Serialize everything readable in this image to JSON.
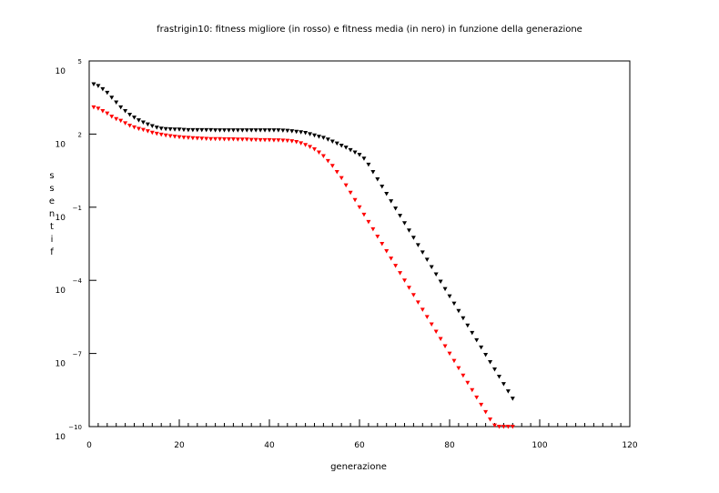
{
  "chart_data": {
    "type": "scatter",
    "title": "frastrigin10: fitness migliore (in rosso) e fitness media (in nero) in funzione della generazione",
    "xlabel": "generazione",
    "ylabel": "fitness",
    "ylabel_display": [
      "s",
      "s",
      "e",
      "n",
      "t",
      "i",
      "f"
    ],
    "xlim": [
      0,
      120
    ],
    "ylim": [
      1e-10,
      100000
    ],
    "yscale": "log",
    "grid": false,
    "x_ticks": [
      {
        "value": 0,
        "label": "0"
      },
      {
        "value": 20,
        "label": "20"
      },
      {
        "value": 40,
        "label": "40"
      },
      {
        "value": 60,
        "label": "60"
      },
      {
        "value": 80,
        "label": "80"
      },
      {
        "value": 100,
        "label": "100"
      },
      {
        "value": 120,
        "label": "120"
      }
    ],
    "y_ticks": [
      {
        "exp": 5,
        "base": "10",
        "label": "5"
      },
      {
        "exp": 2,
        "base": "10",
        "label": "2"
      },
      {
        "exp": -1,
        "base": "10",
        "label": "−1"
      },
      {
        "exp": -4,
        "base": "10",
        "label": "−4"
      },
      {
        "exp": -7,
        "base": "10",
        "label": "−7"
      },
      {
        "exp": -10,
        "base": "10",
        "label": "−10"
      }
    ],
    "series": [
      {
        "name": "fitness media",
        "color": "#000000",
        "values_log10": [
          4.05,
          3.98,
          3.85,
          3.7,
          3.5,
          3.3,
          3.1,
          2.95,
          2.8,
          2.68,
          2.57,
          2.48,
          2.4,
          2.33,
          2.27,
          2.23,
          2.21,
          2.2,
          2.19,
          2.19,
          2.18,
          2.17,
          2.17,
          2.17,
          2.17,
          2.17,
          2.17,
          2.16,
          2.16,
          2.16,
          2.16,
          2.16,
          2.16,
          2.16,
          2.16,
          2.16,
          2.16,
          2.16,
          2.16,
          2.16,
          2.16,
          2.16,
          2.15,
          2.14,
          2.12,
          2.1,
          2.08,
          2.05,
          2.0,
          1.95,
          1.9,
          1.85,
          1.78,
          1.7,
          1.62,
          1.53,
          1.45,
          1.35,
          1.25,
          1.15,
          1.0,
          0.75,
          0.45,
          0.15,
          -0.15,
          -0.45,
          -0.75,
          -1.05,
          -1.35,
          -1.65,
          -1.95,
          -2.25,
          -2.55,
          -2.85,
          -3.15,
          -3.45,
          -3.75,
          -4.05,
          -4.35,
          -4.65,
          -4.95,
          -5.25,
          -5.55,
          -5.85,
          -6.15,
          -6.45,
          -6.75,
          -7.05,
          -7.35,
          -7.65,
          -7.95,
          -8.25,
          -8.55,
          -8.85
        ]
      },
      {
        "name": "fitness migliore",
        "color": "#ff0000",
        "values_log10": [
          3.1,
          3.05,
          2.95,
          2.85,
          2.72,
          2.62,
          2.55,
          2.45,
          2.35,
          2.28,
          2.22,
          2.18,
          2.12,
          2.06,
          2.02,
          1.98,
          1.95,
          1.92,
          1.9,
          1.88,
          1.86,
          1.85,
          1.84,
          1.83,
          1.82,
          1.81,
          1.8,
          1.8,
          1.8,
          1.79,
          1.79,
          1.79,
          1.78,
          1.78,
          1.78,
          1.77,
          1.77,
          1.76,
          1.76,
          1.76,
          1.75,
          1.75,
          1.74,
          1.73,
          1.71,
          1.68,
          1.63,
          1.56,
          1.48,
          1.38,
          1.25,
          1.1,
          0.9,
          0.7,
          0.45,
          0.2,
          -0.1,
          -0.4,
          -0.7,
          -1.0,
          -1.3,
          -1.6,
          -1.9,
          -2.2,
          -2.5,
          -2.8,
          -3.1,
          -3.4,
          -3.7,
          -4.0,
          -4.3,
          -4.6,
          -4.9,
          -5.2,
          -5.5,
          -5.8,
          -6.1,
          -6.4,
          -6.7,
          -7.0,
          -7.3,
          -7.6,
          -7.9,
          -8.2,
          -8.5,
          -8.8,
          -9.1,
          -9.4,
          -9.7,
          -9.95,
          -10.0,
          -10.0,
          -10.0,
          -10.0
        ]
      }
    ]
  }
}
